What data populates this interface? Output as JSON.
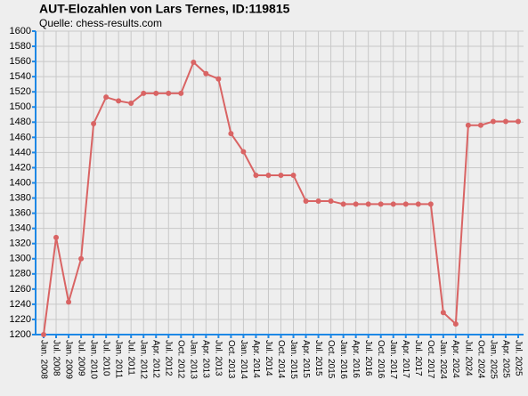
{
  "chart_data": {
    "type": "line",
    "title": "AUT-Elozahlen von Lars Ternes, ID:119815",
    "subtitle": "Quelle: chess-results.com",
    "categories": [
      "Jan. 2008",
      "Jul. 2008",
      "Jan. 2009",
      "Jul. 2009",
      "Jan. 2010",
      "Jul. 2010",
      "Jan. 2011",
      "Jul. 2011",
      "Jan. 2012",
      "Apr. 2012",
      "Jul. 2012",
      "Oct. 2012",
      "Jan. 2013",
      "Apr. 2013",
      "Jul. 2013",
      "Oct. 2013",
      "Jan. 2014",
      "Apr. 2014",
      "Jul. 2014",
      "Oct. 2014",
      "Jan. 2015",
      "Apr. 2015",
      "Jul. 2015",
      "Oct. 2015",
      "Jan. 2016",
      "Apr. 2016",
      "Jul. 2016",
      "Oct. 2016",
      "Jan. 2017",
      "Apr. 2017",
      "Jul. 2017",
      "Oct. 2017",
      "Jan. 2024",
      "Apr. 2024",
      "Jul. 2024",
      "Oct. 2024",
      "Jan. 2025",
      "Apr. 2025",
      "Jul. 2025"
    ],
    "values": [
      1200,
      1328,
      1243,
      1300,
      1478,
      1513,
      1508,
      1505,
      1518,
      1518,
      1518,
      1518,
      1559,
      1544,
      1537,
      1465,
      1441,
      1410,
      1410,
      1410,
      1410,
      1376,
      1376,
      1376,
      1372,
      1372,
      1372,
      1372,
      1372,
      1372,
      1372,
      1372,
      1229,
      1214,
      1476,
      1476,
      1481,
      1481,
      1481
    ],
    "color": "#d96464",
    "ylim": [
      1200,
      1600
    ],
    "yticks": [
      1200,
      1220,
      1240,
      1260,
      1280,
      1300,
      1320,
      1340,
      1360,
      1380,
      1400,
      1420,
      1440,
      1460,
      1480,
      1500,
      1520,
      1540,
      1560,
      1580,
      1600
    ],
    "grid": true
  }
}
